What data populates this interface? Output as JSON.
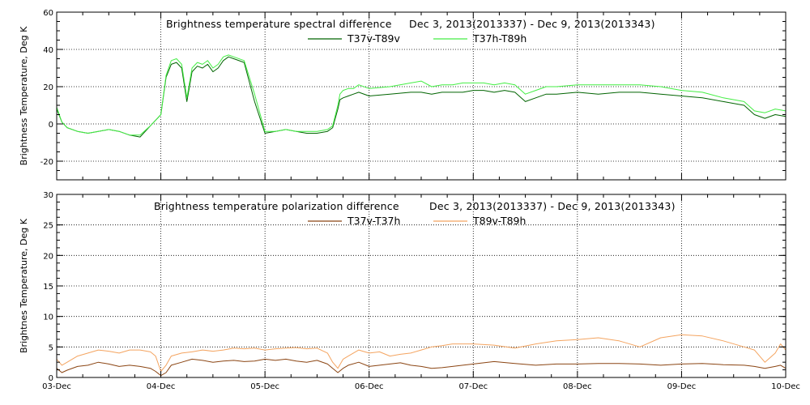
{
  "chart_data": [
    {
      "type": "line",
      "title": "Brightness temperature spectral difference",
      "date_range": "Dec  3, 2013(2013337) - Dec  9, 2013(2013343)",
      "ylabel": "Brightness Temperature, Deg K",
      "xlabel": "",
      "ylim": [
        -30,
        60
      ],
      "yticks": [
        -20,
        0,
        20,
        40,
        60
      ],
      "xlim": [
        0,
        7
      ],
      "xtick_labels": [],
      "grid": true,
      "legend_position": "top-center",
      "x": [
        0,
        0.05,
        0.1,
        0.2,
        0.3,
        0.4,
        0.5,
        0.6,
        0.7,
        0.8,
        0.9,
        1.0,
        1.05,
        1.1,
        1.15,
        1.2,
        1.25,
        1.3,
        1.35,
        1.4,
        1.45,
        1.5,
        1.55,
        1.6,
        1.65,
        1.7,
        1.8,
        1.9,
        2.0,
        2.1,
        2.2,
        2.3,
        2.4,
        2.5,
        2.6,
        2.65,
        2.7,
        2.72,
        2.75,
        2.8,
        2.85,
        2.9,
        3.0,
        3.2,
        3.4,
        3.5,
        3.6,
        3.7,
        3.8,
        3.9,
        4.0,
        4.1,
        4.2,
        4.3,
        4.4,
        4.5,
        4.6,
        4.7,
        4.8,
        5.0,
        5.2,
        5.4,
        5.6,
        5.8,
        6.0,
        6.2,
        6.4,
        6.6,
        6.7,
        6.8,
        6.9,
        7.0
      ],
      "series": [
        {
          "name": "T37v-T89v",
          "color": "#006400",
          "values": [
            8,
            1,
            -2,
            -4,
            -5,
            -4,
            -3,
            -4,
            -6,
            -7,
            -1,
            5,
            25,
            32,
            33,
            30,
            12,
            28,
            31,
            30,
            32,
            28,
            30,
            34,
            36,
            35,
            33,
            12,
            -5,
            -4,
            -3,
            -4,
            -5,
            -5,
            -4,
            -2,
            8,
            13,
            14,
            15,
            16,
            17,
            15,
            16,
            17,
            17,
            16,
            17,
            17,
            17,
            18,
            18,
            17,
            18,
            17,
            12,
            14,
            16,
            16,
            17,
            16,
            17,
            17,
            16,
            15,
            14,
            12,
            10,
            5,
            3,
            5,
            4
          ]
        },
        {
          "name": "T37h-T89h",
          "color": "#44ee44",
          "values": [
            9,
            1,
            -2,
            -4,
            -5,
            -4,
            -3,
            -4,
            -6,
            -6,
            -1,
            5,
            26,
            34,
            35,
            32,
            14,
            30,
            33,
            32,
            34,
            30,
            32,
            36,
            37,
            36,
            34,
            16,
            -4,
            -4,
            -3,
            -4,
            -4,
            -4,
            -3,
            -1,
            10,
            16,
            18,
            19,
            19,
            21,
            19,
            20,
            22,
            23,
            20,
            21,
            21,
            22,
            22,
            22,
            21,
            22,
            21,
            16,
            18,
            20,
            20,
            21,
            21,
            21,
            21,
            20,
            18,
            17,
            14,
            12,
            7,
            6,
            8,
            7
          ]
        }
      ]
    },
    {
      "type": "line",
      "title": "Brightness temperature polarization difference",
      "date_range": "Dec  3, 2013(2013337) - Dec  9, 2013(2013343)",
      "ylabel": "Brightnes Temperature, Deg K",
      "xlabel": "",
      "ylim": [
        0,
        30
      ],
      "yticks": [
        0,
        5,
        10,
        15,
        20,
        25,
        30
      ],
      "xlim": [
        0,
        7
      ],
      "xtick_labels": [
        "03-Dec",
        "04-Dec",
        "05-Dec",
        "06-Dec",
        "07-Dec",
        "08-Dec",
        "09-Dec",
        "10-Dec"
      ],
      "grid": true,
      "legend_position": "top-center",
      "x": [
        0,
        0.05,
        0.1,
        0.2,
        0.3,
        0.4,
        0.5,
        0.6,
        0.7,
        0.8,
        0.9,
        0.95,
        1.0,
        1.05,
        1.1,
        1.2,
        1.3,
        1.4,
        1.5,
        1.6,
        1.7,
        1.8,
        1.9,
        2.0,
        2.1,
        2.2,
        2.3,
        2.4,
        2.5,
        2.6,
        2.65,
        2.7,
        2.75,
        2.8,
        2.9,
        3.0,
        3.1,
        3.2,
        3.3,
        3.4,
        3.5,
        3.6,
        3.7,
        3.8,
        3.9,
        4.0,
        4.2,
        4.4,
        4.6,
        4.8,
        5.0,
        5.2,
        5.4,
        5.6,
        5.8,
        6.0,
        6.2,
        6.4,
        6.6,
        6.7,
        6.8,
        6.9,
        6.95,
        7.0
      ],
      "series": [
        {
          "name": "T37v-T37h",
          "color": "#8b4513",
          "values": [
            1.5,
            0.8,
            1.2,
            1.8,
            2.0,
            2.5,
            2.2,
            1.8,
            2.0,
            1.8,
            1.5,
            1.0,
            0.3,
            0.8,
            2.0,
            2.5,
            3.0,
            2.8,
            2.5,
            2.7,
            2.8,
            2.6,
            2.7,
            3.0,
            2.8,
            3.0,
            2.7,
            2.5,
            2.8,
            2.2,
            1.5,
            0.8,
            1.5,
            2.0,
            2.5,
            1.8,
            2.0,
            2.2,
            2.4,
            2.0,
            1.8,
            1.5,
            1.6,
            1.8,
            2.0,
            2.2,
            2.6,
            2.3,
            2.0,
            2.2,
            2.2,
            2.3,
            2.3,
            2.2,
            2.0,
            2.2,
            2.3,
            2.1,
            2.0,
            1.8,
            1.5,
            1.8,
            2.0,
            1.5
          ]
        },
        {
          "name": "T89v-T89h",
          "color": "#f4a460",
          "values": [
            3.0,
            2.0,
            2.5,
            3.5,
            4.0,
            4.5,
            4.3,
            4.0,
            4.5,
            4.5,
            4.2,
            3.5,
            1.0,
            2.0,
            3.5,
            4.0,
            4.2,
            4.5,
            4.3,
            4.5,
            4.8,
            4.7,
            4.8,
            4.5,
            4.7,
            4.8,
            4.9,
            4.7,
            4.8,
            4.0,
            2.5,
            1.5,
            3.0,
            3.5,
            4.5,
            4.0,
            4.2,
            3.5,
            3.8,
            4.0,
            4.5,
            5.0,
            5.2,
            5.5,
            5.5,
            5.5,
            5.3,
            4.8,
            5.5,
            6.0,
            6.2,
            6.5,
            6.0,
            5.0,
            6.5,
            7.0,
            6.8,
            6.0,
            5.0,
            4.5,
            2.5,
            4.0,
            5.5,
            4.5
          ]
        }
      ]
    }
  ]
}
